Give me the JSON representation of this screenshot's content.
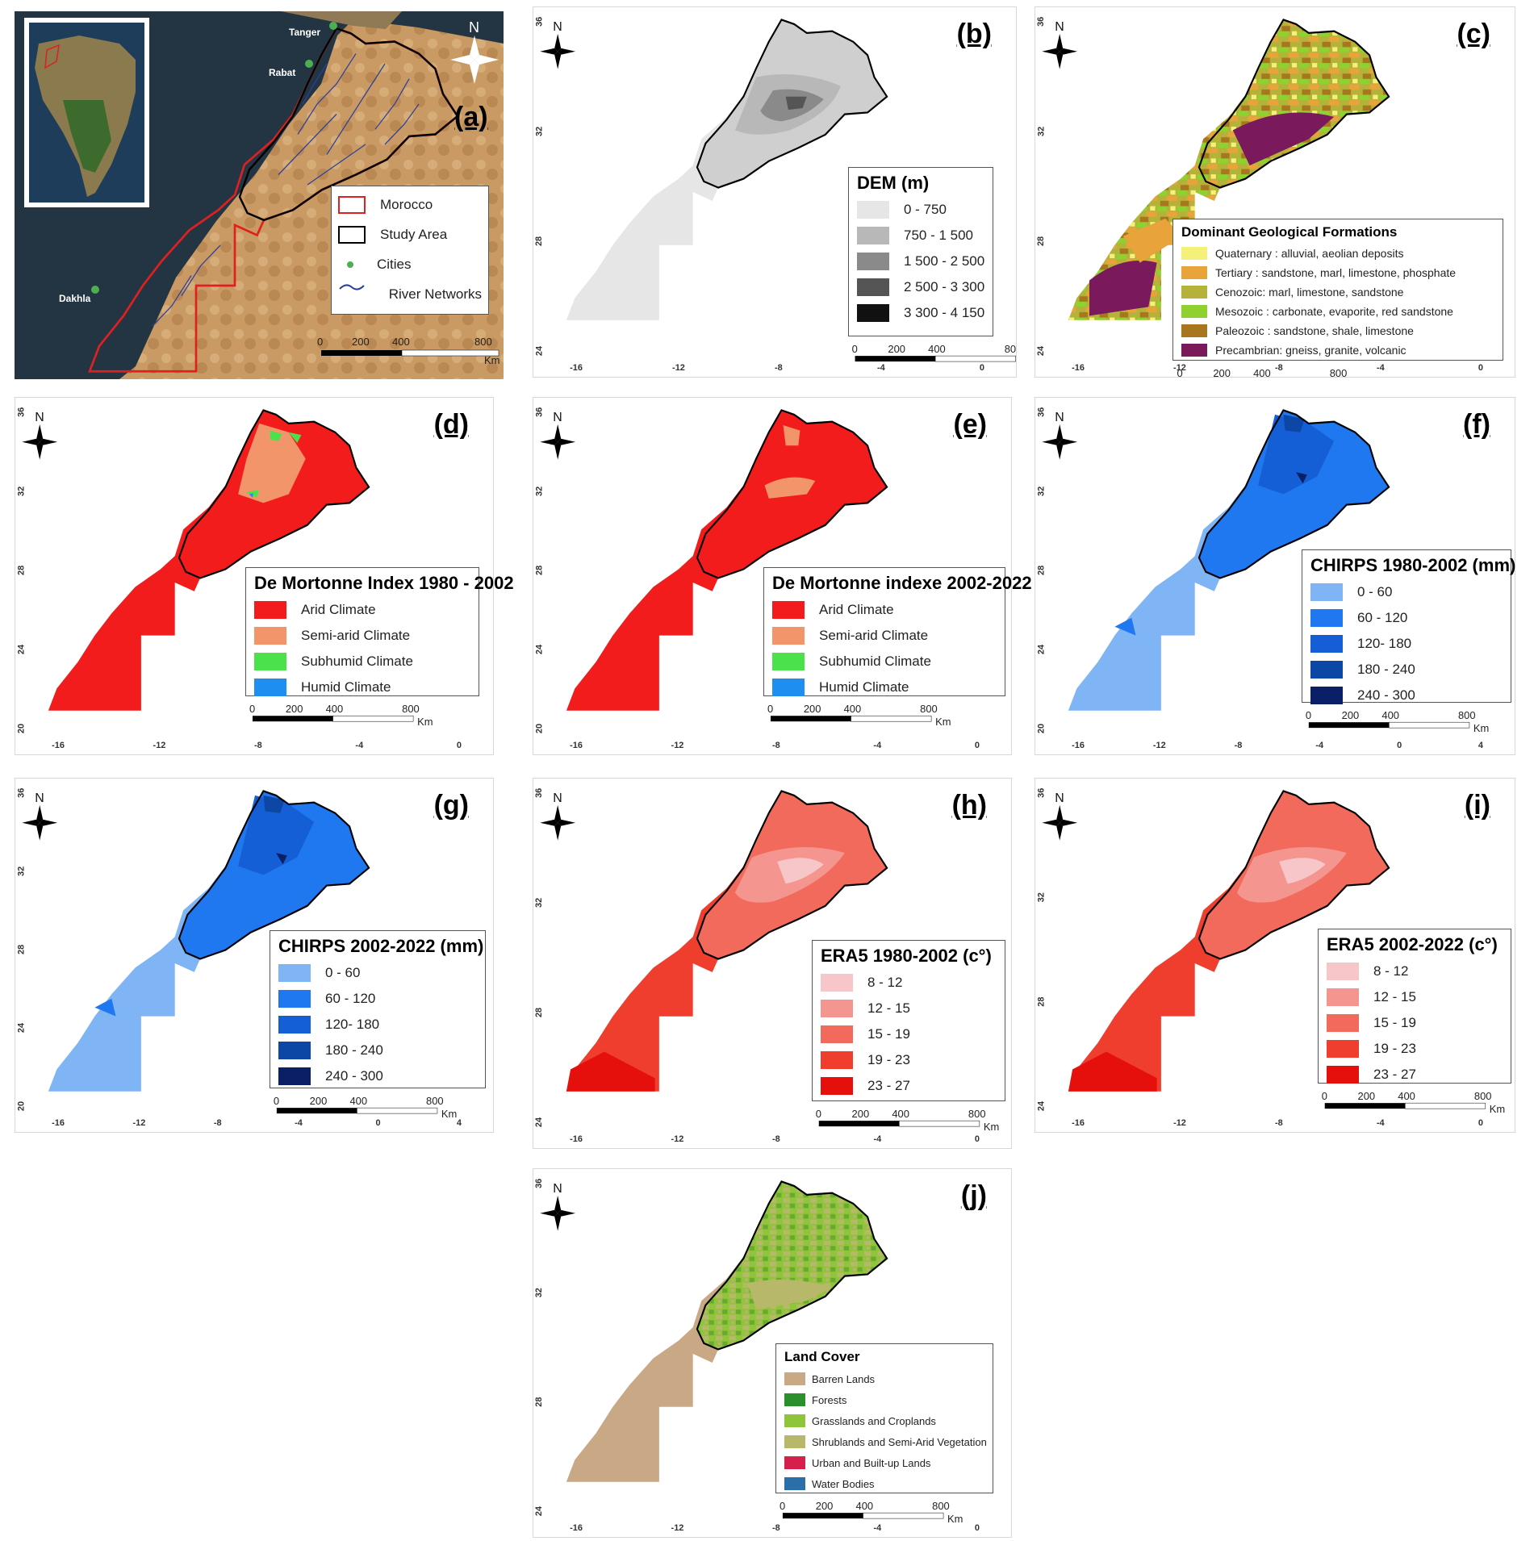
{
  "panels": {
    "a": {
      "label": "(a)",
      "legend": [
        {
          "label": "Morocco",
          "color": "#e02020"
        },
        {
          "label": "Study Area",
          "color": "#000000"
        },
        {
          "label": "Cities",
          "color": "#4caf50"
        },
        {
          "label": "River Networks",
          "color": "#2a3f9d"
        }
      ],
      "cities": [
        "Tanger",
        "Rabat",
        "Dakhla"
      ],
      "north": "N"
    },
    "b": {
      "label": "(b)",
      "legend_title": "DEM (m)",
      "legend": [
        {
          "label": "0 - 750",
          "color": "#e6e6e6"
        },
        {
          "label": "750 - 1 500",
          "color": "#b8b8b8"
        },
        {
          "label": "1 500 - 2 500",
          "color": "#8a8a8a"
        },
        {
          "label": "2 500 - 3 300",
          "color": "#555555"
        },
        {
          "label": "3 300 - 4 150",
          "color": "#111111"
        }
      ]
    },
    "c": {
      "label": "(c)",
      "legend_title": "Dominant Geological Formations",
      "legend": [
        {
          "label": "Quaternary : alluvial, aeolian deposits",
          "color": "#f5f07a"
        },
        {
          "label": "Tertiary : sandstone, marl, limestone, phosphate",
          "color": "#e8a43a"
        },
        {
          "label": "Cenozoic: marl, limestone, sandstone",
          "color": "#b5b23a"
        },
        {
          "label": "Mesozoic : carbonate, evaporite, red sandstone",
          "color": "#8fd12e"
        },
        {
          "label": "Paleozoic : sandstone, shale, limestone",
          "color": "#a7761e"
        },
        {
          "label": "Precambrian: gneiss, granite, volcanic",
          "color": "#7a1a5c"
        }
      ]
    },
    "d": {
      "label": "(d)",
      "legend_title": "De Mortonne Index 1980 - 2002",
      "legend": [
        {
          "label": "Arid  Climate",
          "color": "#f21c1c"
        },
        {
          "label": "Semi-arid Climate",
          "color": "#f2956a"
        },
        {
          "label": "Subhumid Climate",
          "color": "#4be14b"
        },
        {
          "label": "Humid Climate",
          "color": "#1e8ff0"
        }
      ]
    },
    "e": {
      "label": "(e)",
      "legend_title": "De Mortonne indexe 2002-2022",
      "legend": [
        {
          "label": "Arid  Climate",
          "color": "#f21c1c"
        },
        {
          "label": "Semi-arid Climate",
          "color": "#f2956a"
        },
        {
          "label": "Subhumid Climate",
          "color": "#4be14b"
        },
        {
          "label": "Humid Climate",
          "color": "#1e8ff0"
        }
      ]
    },
    "f": {
      "label": "(f)",
      "legend_title": "CHIRPS 1980-2002 (mm)",
      "legend": [
        {
          "label": "0 - 60",
          "color": "#7fb4f5"
        },
        {
          "label": "60 - 120",
          "color": "#1f78ef"
        },
        {
          "label": "120- 180",
          "color": "#155fd6"
        },
        {
          "label": "180 - 240",
          "color": "#0d47a6"
        },
        {
          "label": "240 - 300",
          "color": "#0a1f66"
        }
      ]
    },
    "g": {
      "label": "(g)",
      "legend_title": "CHIRPS 2002-2022 (mm)",
      "legend": [
        {
          "label": "0 - 60",
          "color": "#7fb4f5"
        },
        {
          "label": "60 - 120",
          "color": "#1f78ef"
        },
        {
          "label": "120- 180",
          "color": "#155fd6"
        },
        {
          "label": "180 - 240",
          "color": "#0d47a6"
        },
        {
          "label": "240 - 300",
          "color": "#0a1f66"
        }
      ]
    },
    "h": {
      "label": "(h)",
      "legend_title": "ERA5 1980-2002 (c°)",
      "legend": [
        {
          "label": "8 - 12",
          "color": "#f7c6c9"
        },
        {
          "label": "12 - 15",
          "color": "#f5958f"
        },
        {
          "label": "15 - 19",
          "color": "#f26a5b"
        },
        {
          "label": "19 - 23",
          "color": "#ef3e2e"
        },
        {
          "label": "23 - 27",
          "color": "#e5100c"
        }
      ]
    },
    "i": {
      "label": "(i)",
      "legend_title": "ERA5 2002-2022 (c°)",
      "legend": [
        {
          "label": "8 - 12",
          "color": "#f7c6c9"
        },
        {
          "label": "12 - 15",
          "color": "#f5958f"
        },
        {
          "label": "15 - 19",
          "color": "#f26a5b"
        },
        {
          "label": "19 - 23",
          "color": "#ef3e2e"
        },
        {
          "label": "23 - 27",
          "color": "#e5100c"
        }
      ]
    },
    "j": {
      "label": "(j)",
      "legend_title": "Land Cover",
      "legend": [
        {
          "label": "Barren Lands",
          "color": "#c9a985"
        },
        {
          "label": "Forests",
          "color": "#2b8f2b"
        },
        {
          "label": "Grasslands and Croplands",
          "color": "#8fc53a"
        },
        {
          "label": "Shrublands and Semi-Arid Vegetation",
          "color": "#b8b86a"
        },
        {
          "label": "Urban and Built-up Lands",
          "color": "#d4204a"
        },
        {
          "label": "Water Bodies",
          "color": "#2a6fa8"
        }
      ]
    }
  },
  "map_common": {
    "north": "N",
    "scalebar": [
      "0",
      "200",
      "400",
      "800"
    ],
    "scalebar_unit": "Km",
    "x_ticks": [
      "-16",
      "-12",
      "-8",
      "-4",
      "0"
    ],
    "x_ticks_ext": [
      "-16",
      "-12",
      "-8",
      "-4",
      "0",
      "4"
    ],
    "y_ticks": [
      "36",
      "32",
      "28",
      "24"
    ],
    "y_ticks_ext": [
      "36",
      "32",
      "28",
      "24",
      "20"
    ]
  }
}
